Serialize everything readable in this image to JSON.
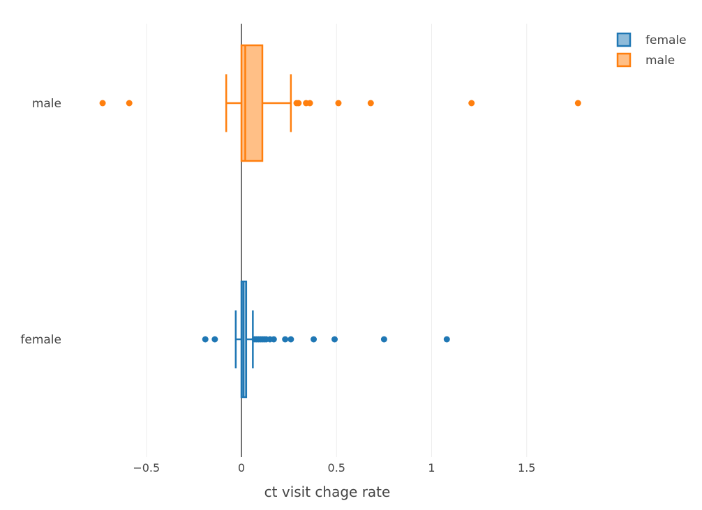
{
  "chart_data": {
    "type": "box",
    "orientation": "horizontal",
    "title": "",
    "xlabel": "ct visit chage rate",
    "ylabel": "",
    "categories": [
      "female",
      "male"
    ],
    "x_ticks": [
      -0.5,
      0,
      0.5,
      1,
      1.5
    ],
    "x_tick_labels": [
      "−0.5",
      "0",
      "0.5",
      "1",
      "1.5"
    ],
    "xlim": [
      -1.0,
      2.3
    ],
    "grid": true,
    "zeroline": true,
    "legend": {
      "placement": "top-right",
      "entries": [
        "female",
        "male"
      ]
    },
    "series": [
      {
        "name": "female",
        "category": "female",
        "color": "#1f77b4",
        "fill": "#8fbbd9",
        "whisker_low": -0.03,
        "q1": 0.0,
        "median": 0.01,
        "q3": 0.025,
        "whisker_high": 0.06,
        "outliers": [
          -0.19,
          -0.14,
          0.07,
          0.08,
          0.09,
          0.1,
          0.11,
          0.12,
          0.13,
          0.15,
          0.17,
          0.23,
          0.26,
          0.38,
          0.49,
          0.75,
          1.08
        ]
      },
      {
        "name": "male",
        "category": "male",
        "color": "#ff7f0e",
        "fill": "#ffbf86",
        "whisker_low": -0.08,
        "q1": 0.0,
        "median": 0.02,
        "q3": 0.11,
        "whisker_high": 0.26,
        "outliers": [
          -0.73,
          -0.59,
          0.29,
          0.3,
          0.34,
          0.36,
          0.51,
          0.68,
          1.21,
          1.77
        ]
      }
    ]
  }
}
